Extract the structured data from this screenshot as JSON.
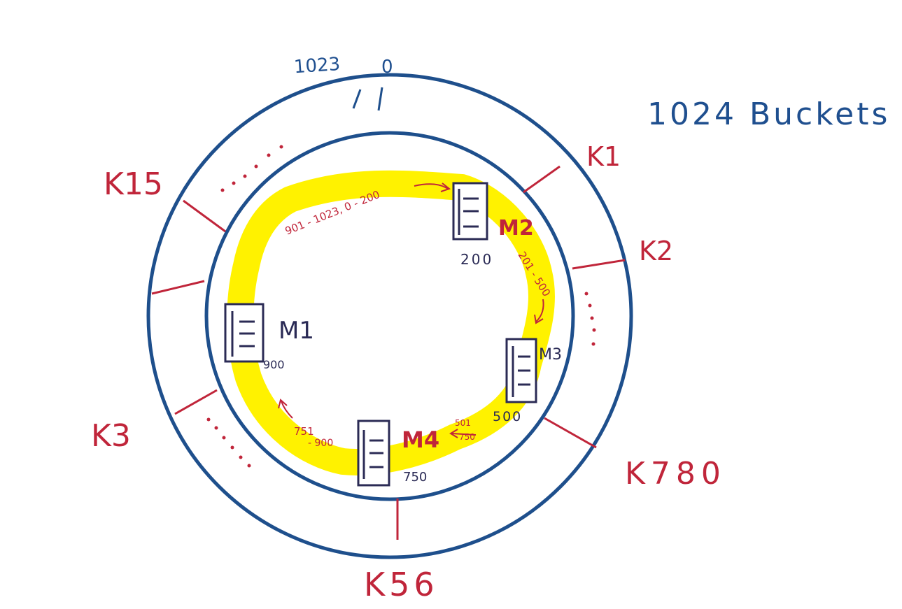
{
  "ring": {
    "ticks": {
      "last": "1023",
      "first": "0"
    },
    "bucket_count_label": "1024 Buckets",
    "colors": {
      "ring": "#1e4f8c",
      "key": "#c0253a",
      "highlight": "#fff200",
      "server": "#2b2b55"
    }
  },
  "keys": [
    {
      "id": "k1",
      "label": "K1"
    },
    {
      "id": "k2",
      "label": "K2"
    },
    {
      "id": "k780",
      "label": "K780"
    },
    {
      "id": "k56",
      "label": "K56"
    },
    {
      "id": "k3",
      "label": "K3"
    },
    {
      "id": "k15",
      "label": "K15"
    }
  ],
  "machines": [
    {
      "id": "m1",
      "label": "M1",
      "position": "900"
    },
    {
      "id": "m2",
      "label": "M2",
      "position": "200"
    },
    {
      "id": "m3",
      "label": "M3",
      "position": "500"
    },
    {
      "id": "m4",
      "label": "M4",
      "position": "750"
    }
  ],
  "ranges": {
    "m2": "901 - 1023, 0 - 200",
    "m3": "201 - 500",
    "m4_top": "501",
    "m4_bottom": "750",
    "m1_top": "751",
    "m1_bottom": "- 900"
  },
  "icons": [
    "server-icon",
    "arrow-icon"
  ]
}
